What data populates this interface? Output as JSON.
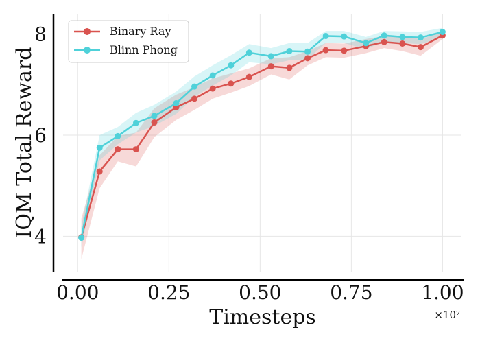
{
  "chart_data": {
    "type": "line",
    "title": "",
    "xlabel": "Timesteps",
    "ylabel": "IQM Total Reward",
    "x_multiplier_label": "×10⁷",
    "xlim": [
      -0.04,
      1.05
    ],
    "ylim": [
      3.3,
      8.4
    ],
    "xticks": [
      0.0,
      0.25,
      0.5,
      0.75,
      1.0
    ],
    "xtick_labels": [
      "0.00",
      "0.25",
      "0.50",
      "0.75",
      "1.00"
    ],
    "yticks": [
      4,
      6,
      8
    ],
    "ytick_labels": [
      "4",
      "6",
      "8"
    ],
    "grid": true,
    "legend_position": "top-left",
    "x": [
      0.01,
      0.06,
      0.11,
      0.16,
      0.21,
      0.27,
      0.32,
      0.37,
      0.42,
      0.47,
      0.53,
      0.58,
      0.63,
      0.68,
      0.73,
      0.79,
      0.84,
      0.89,
      0.94,
      1.0
    ],
    "series": [
      {
        "name": "Binary Ray",
        "color": "#d9534f",
        "values": [
          3.98,
          5.28,
          5.72,
          5.72,
          6.25,
          6.55,
          6.72,
          6.92,
          7.02,
          7.15,
          7.36,
          7.33,
          7.52,
          7.68,
          7.67,
          7.76,
          7.84,
          7.81,
          7.74,
          7.97
        ],
        "lower": [
          3.55,
          4.95,
          5.48,
          5.38,
          5.96,
          6.3,
          6.5,
          6.72,
          6.84,
          6.97,
          7.2,
          7.1,
          7.38,
          7.54,
          7.53,
          7.62,
          7.72,
          7.66,
          7.57,
          7.9
        ],
        "upper": [
          4.35,
          5.6,
          5.98,
          6.05,
          6.53,
          6.8,
          6.95,
          7.12,
          7.22,
          7.32,
          7.52,
          7.54,
          7.66,
          7.82,
          7.81,
          7.9,
          7.96,
          7.95,
          7.9,
          8.04
        ]
      },
      {
        "name": "Blinn Phong",
        "color": "#4fd1d9",
        "values": [
          3.97,
          5.75,
          5.98,
          6.24,
          6.38,
          6.63,
          6.96,
          7.18,
          7.38,
          7.63,
          7.56,
          7.66,
          7.65,
          7.96,
          7.95,
          7.82,
          7.97,
          7.94,
          7.93,
          8.04
        ],
        "lower": [
          3.78,
          5.5,
          5.82,
          6.05,
          6.18,
          6.42,
          6.76,
          6.98,
          7.18,
          7.44,
          7.4,
          7.48,
          7.5,
          7.82,
          7.82,
          7.7,
          7.85,
          7.82,
          7.8,
          7.94
        ],
        "upper": [
          4.2,
          6.0,
          6.16,
          6.44,
          6.6,
          6.86,
          7.16,
          7.38,
          7.58,
          7.8,
          7.72,
          7.82,
          7.82,
          8.06,
          8.06,
          7.94,
          8.06,
          8.05,
          8.04,
          8.12
        ]
      }
    ]
  }
}
